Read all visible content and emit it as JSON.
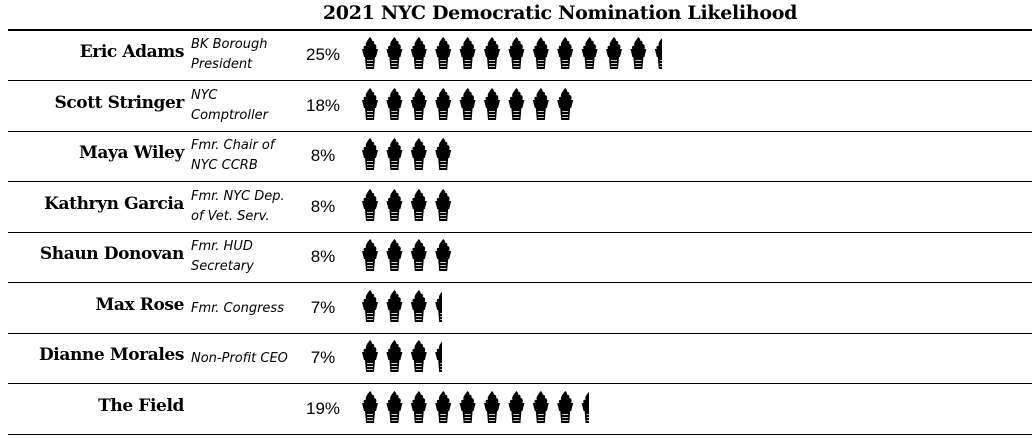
{
  "chart_data": {
    "type": "bar",
    "title": "2021 NYC Democratic Nomination Likelihood",
    "unit": "%",
    "categories": [
      "Eric Adams",
      "Scott Stringer",
      "Maya Wiley",
      "Kathryn Garcia",
      "Shaun Donovan",
      "Max Rose",
      "Dianne Morales",
      "The Field"
    ],
    "subtitles": [
      [
        "BK Borough",
        "President"
      ],
      [
        "NYC",
        "Comptroller"
      ],
      [
        "Fmr. Chair of",
        "NYC CCRB"
      ],
      [
        "Fmr. NYC Dep.",
        "of Vet. Serv."
      ],
      [
        "Fmr. HUD",
        "Secretary"
      ],
      [
        "Fmr. Congress"
      ],
      [
        "Non-Profit CEO"
      ],
      []
    ],
    "values": [
      25,
      18,
      8,
      8,
      8,
      7,
      7,
      19
    ],
    "value_labels": [
      "25%",
      "18%",
      "8%",
      "8%",
      "8%",
      "7%",
      "7%",
      "19%"
    ],
    "pct_per_icon": 2
  },
  "colors": {
    "icon": "#000000",
    "text": "#000000",
    "background": "#ffffff"
  },
  "icon": "torch-icon"
}
